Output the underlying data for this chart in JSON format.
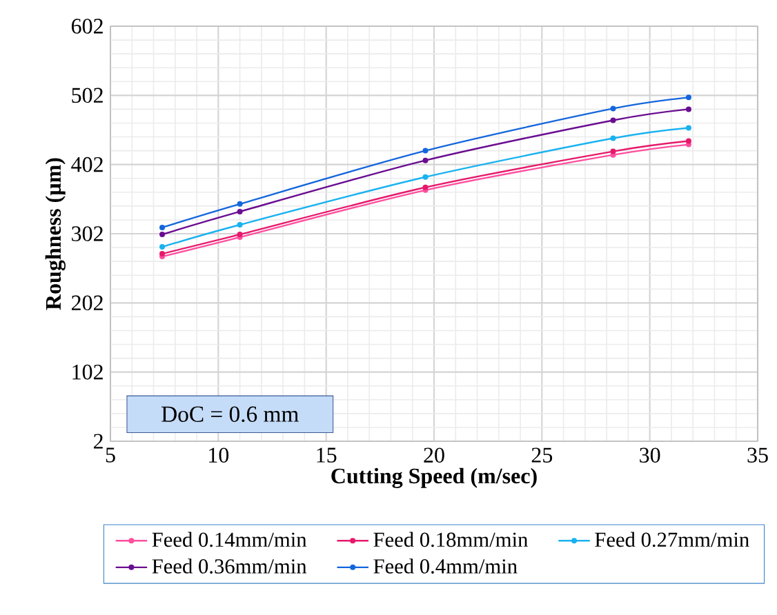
{
  "chart_data": {
    "type": "line",
    "xlabel": "Cutting Speed (m/sec)",
    "ylabel": "Roughness (µm)",
    "x": [
      7.4,
      11,
      19.6,
      28.3,
      31.8
    ],
    "series": [
      {
        "name": "Feed 0.14mm/min",
        "color": "#ff4f9f",
        "values": [
          269,
          297,
          365,
          416,
          431
        ]
      },
      {
        "name": "Feed 0.18mm/min",
        "color": "#e6196b",
        "values": [
          273,
          301,
          369,
          421,
          436
        ]
      },
      {
        "name": "Feed 0.27mm/min",
        "color": "#1ab2f0",
        "values": [
          283,
          315,
          384,
          440,
          455
        ]
      },
      {
        "name": "Feed 0.36mm/min",
        "color": "#6a0d91",
        "values": [
          301,
          334,
          408,
          466,
          482
        ]
      },
      {
        "name": "Feed 0.4mm/min",
        "color": "#1466dc",
        "values": [
          311,
          345,
          422,
          483,
          499
        ]
      }
    ],
    "xlim": [
      5,
      35
    ],
    "xticks": [
      5,
      10,
      15,
      20,
      25,
      30,
      35
    ],
    "ylim": [
      2,
      602
    ],
    "yticks": [
      2,
      102,
      202,
      302,
      402,
      502,
      602
    ],
    "grid": true,
    "legend": "bottom",
    "marker": "circle",
    "line_style": "solid",
    "annotations": [
      "DoC = 0.6 mm"
    ]
  }
}
